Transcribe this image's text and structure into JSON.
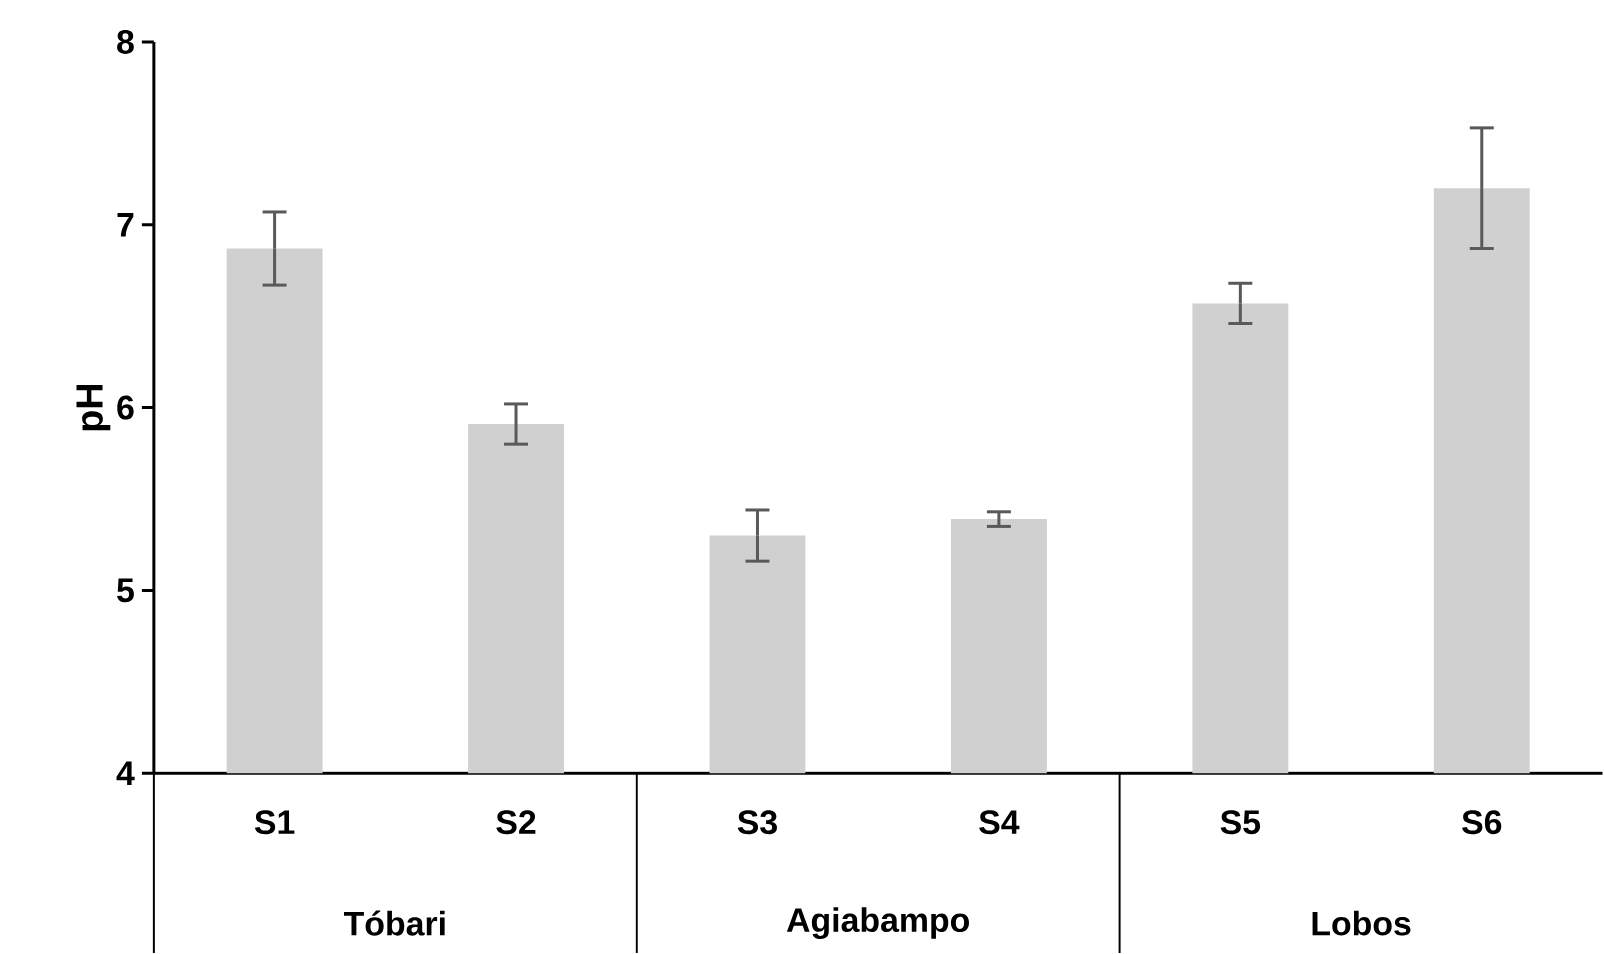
{
  "chart_data": {
    "type": "bar",
    "ylabel": "pH",
    "categories": [
      "S1",
      "S2",
      "S3",
      "S4",
      "S5",
      "S6"
    ],
    "values": [
      6.87,
      5.91,
      5.3,
      5.39,
      6.57,
      7.2
    ],
    "errors": [
      0.2,
      0.11,
      0.14,
      0.04,
      0.11,
      0.33
    ],
    "color": "#d0d0d0",
    "ylim": [
      4,
      8
    ],
    "yticks": [
      4,
      5,
      6,
      7,
      8
    ],
    "annotations": [
      "Tóbari",
      "Agiabampo",
      "Lobos"
    ]
  }
}
